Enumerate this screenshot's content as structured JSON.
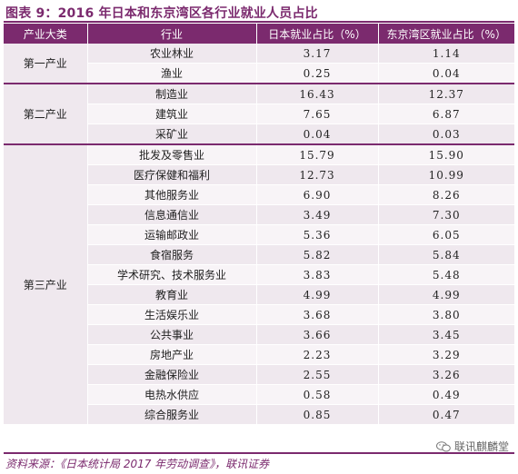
{
  "title": "图表 9：2016 年日本和东京湾区各行业就业人员占比",
  "header": {
    "category": "产业大类",
    "industry": "行业",
    "japan": "日本就业占比（%）",
    "tokyo": "东京湾区就业占比（%）"
  },
  "groups": [
    {
      "category": "第一产业",
      "rows": [
        {
          "industry": "农业林业",
          "japan": "3.17",
          "tokyo": "1.14"
        },
        {
          "industry": "渔业",
          "japan": "0.25",
          "tokyo": "0.04"
        }
      ]
    },
    {
      "category": "第二产业",
      "rows": [
        {
          "industry": "制造业",
          "japan": "16.43",
          "tokyo": "12.37"
        },
        {
          "industry": "建筑业",
          "japan": "7.65",
          "tokyo": "6.87"
        },
        {
          "industry": "采矿业",
          "japan": "0.04",
          "tokyo": "0.03"
        }
      ]
    },
    {
      "category": "第三产业",
      "rows": [
        {
          "industry": "批发及零售业",
          "japan": "15.79",
          "tokyo": "15.90"
        },
        {
          "industry": "医疗保健和福利",
          "japan": "12.73",
          "tokyo": "10.99"
        },
        {
          "industry": "其他服务业",
          "japan": "6.90",
          "tokyo": "8.26"
        },
        {
          "industry": "信息通信业",
          "japan": "3.49",
          "tokyo": "7.30"
        },
        {
          "industry": "运输邮政业",
          "japan": "5.36",
          "tokyo": "6.05"
        },
        {
          "industry": "食宿服务",
          "japan": "5.82",
          "tokyo": "5.84"
        },
        {
          "industry": "学术研究、技术服务业",
          "japan": "3.83",
          "tokyo": "5.48"
        },
        {
          "industry": "教育业",
          "japan": "4.99",
          "tokyo": "4.99"
        },
        {
          "industry": "生活娱乐业",
          "japan": "3.68",
          "tokyo": "3.80"
        },
        {
          "industry": "公共事业",
          "japan": "3.66",
          "tokyo": "3.45"
        },
        {
          "industry": "房地产业",
          "japan": "2.23",
          "tokyo": "3.29"
        },
        {
          "industry": "金融保险业",
          "japan": "2.55",
          "tokyo": "3.26"
        },
        {
          "industry": "电热水供应",
          "japan": "0.58",
          "tokyo": "0.49"
        },
        {
          "industry": "综合服务业",
          "japan": "0.85",
          "tokyo": "0.47"
        }
      ]
    }
  ],
  "source": "资料来源：《日本统计局 2017 年劳动调查》，联讯证券",
  "watermark": "联讯麒麟堂",
  "colors": {
    "accent": "#7b2a6e",
    "row_odd": "#efe8ee",
    "row_even": "#f8f4f7"
  },
  "icons": {
    "watermark": "wechat-icon"
  }
}
